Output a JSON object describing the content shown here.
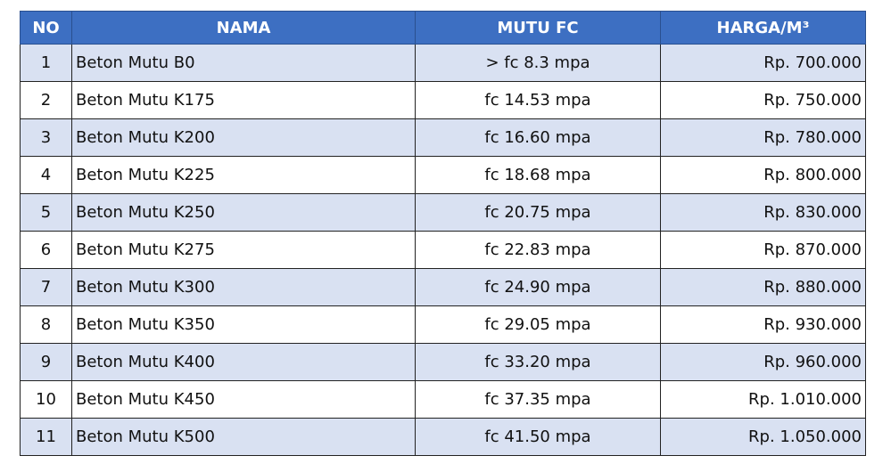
{
  "table": {
    "header": [
      "NO",
      "NAMA",
      "MUTU FC",
      "HARGA/M³"
    ],
    "rows": [
      [
        "1",
        "Beton Mutu B0",
        "> fc 8.3 mpa",
        "Rp. 700.000"
      ],
      [
        "2",
        "Beton Mutu K175",
        "fc 14.53 mpa",
        "Rp. 750.000"
      ],
      [
        "3",
        "Beton Mutu K200",
        "fc 16.60 mpa",
        "Rp. 780.000"
      ],
      [
        "4",
        "Beton Mutu K225",
        "fc 18.68 mpa",
        "Rp. 800.000"
      ],
      [
        "5",
        "Beton Mutu K250",
        "fc 20.75 mpa",
        "Rp. 830.000"
      ],
      [
        "6",
        "Beton Mutu K275",
        "fc 22.83 mpa",
        "Rp. 870.000"
      ],
      [
        "7",
        "Beton Mutu K300",
        "fc 24.90 mpa",
        "Rp. 880.000"
      ],
      [
        "8",
        "Beton Mutu K350",
        "fc 29.05 mpa",
        "Rp. 930.000"
      ],
      [
        "9",
        "Beton Mutu K400",
        "fc 33.20 mpa",
        "Rp. 960.000"
      ],
      [
        "10",
        "Beton Mutu K450",
        "fc 37.35 mpa",
        "Rp. 1.010.000"
      ],
      [
        "11",
        "Beton Mutu K500",
        "fc 41.50 mpa",
        "Rp. 1.050.000"
      ]
    ]
  }
}
